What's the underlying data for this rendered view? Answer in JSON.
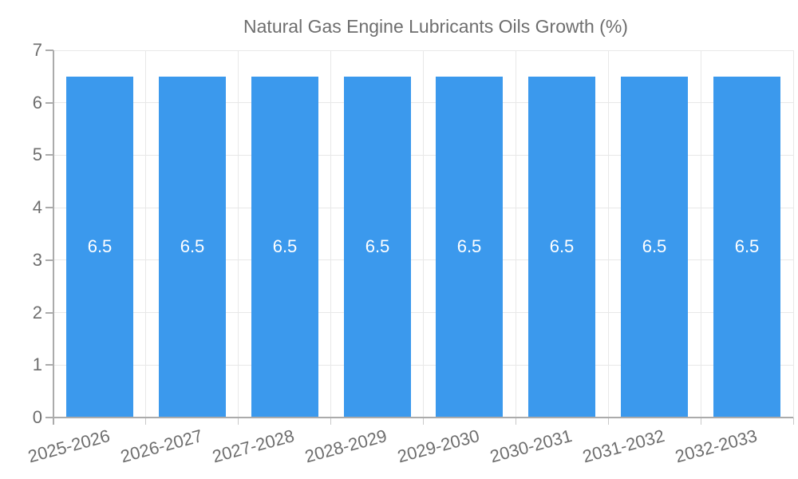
{
  "legend": {
    "label": "Natural Gas Engine Lubricants Oils Growth (%)"
  },
  "chart_data": {
    "type": "bar",
    "title": "Natural Gas Engine Lubricants Oils Growth (%)",
    "categories": [
      "2025-2026",
      "2026-2027",
      "2027-2028",
      "2028-2029",
      "2029-2030",
      "2030-2031",
      "2031-2032",
      "2032-2033"
    ],
    "series": [
      {
        "name": "Natural Gas Engine Lubricants Oils Growth (%)",
        "values": [
          6.5,
          6.5,
          6.5,
          6.5,
          6.5,
          6.5,
          6.5,
          6.5
        ]
      }
    ],
    "value_labels": [
      "6.5",
      "6.5",
      "6.5",
      "6.5",
      "6.5",
      "6.5",
      "6.5",
      "6.5"
    ],
    "xlabel": "",
    "ylabel": "",
    "ylim": [
      0,
      7
    ],
    "yticks": [
      0,
      1,
      2,
      3,
      4,
      5,
      6,
      7
    ],
    "grid": true,
    "legend_position": "top",
    "colors": {
      "bar": "#3b99ed",
      "grid": "#e8e8e8",
      "axis": "#ababab",
      "tick_text": "#6e6e6e",
      "value_text": "#ffffff",
      "background": "#ffffff"
    }
  }
}
